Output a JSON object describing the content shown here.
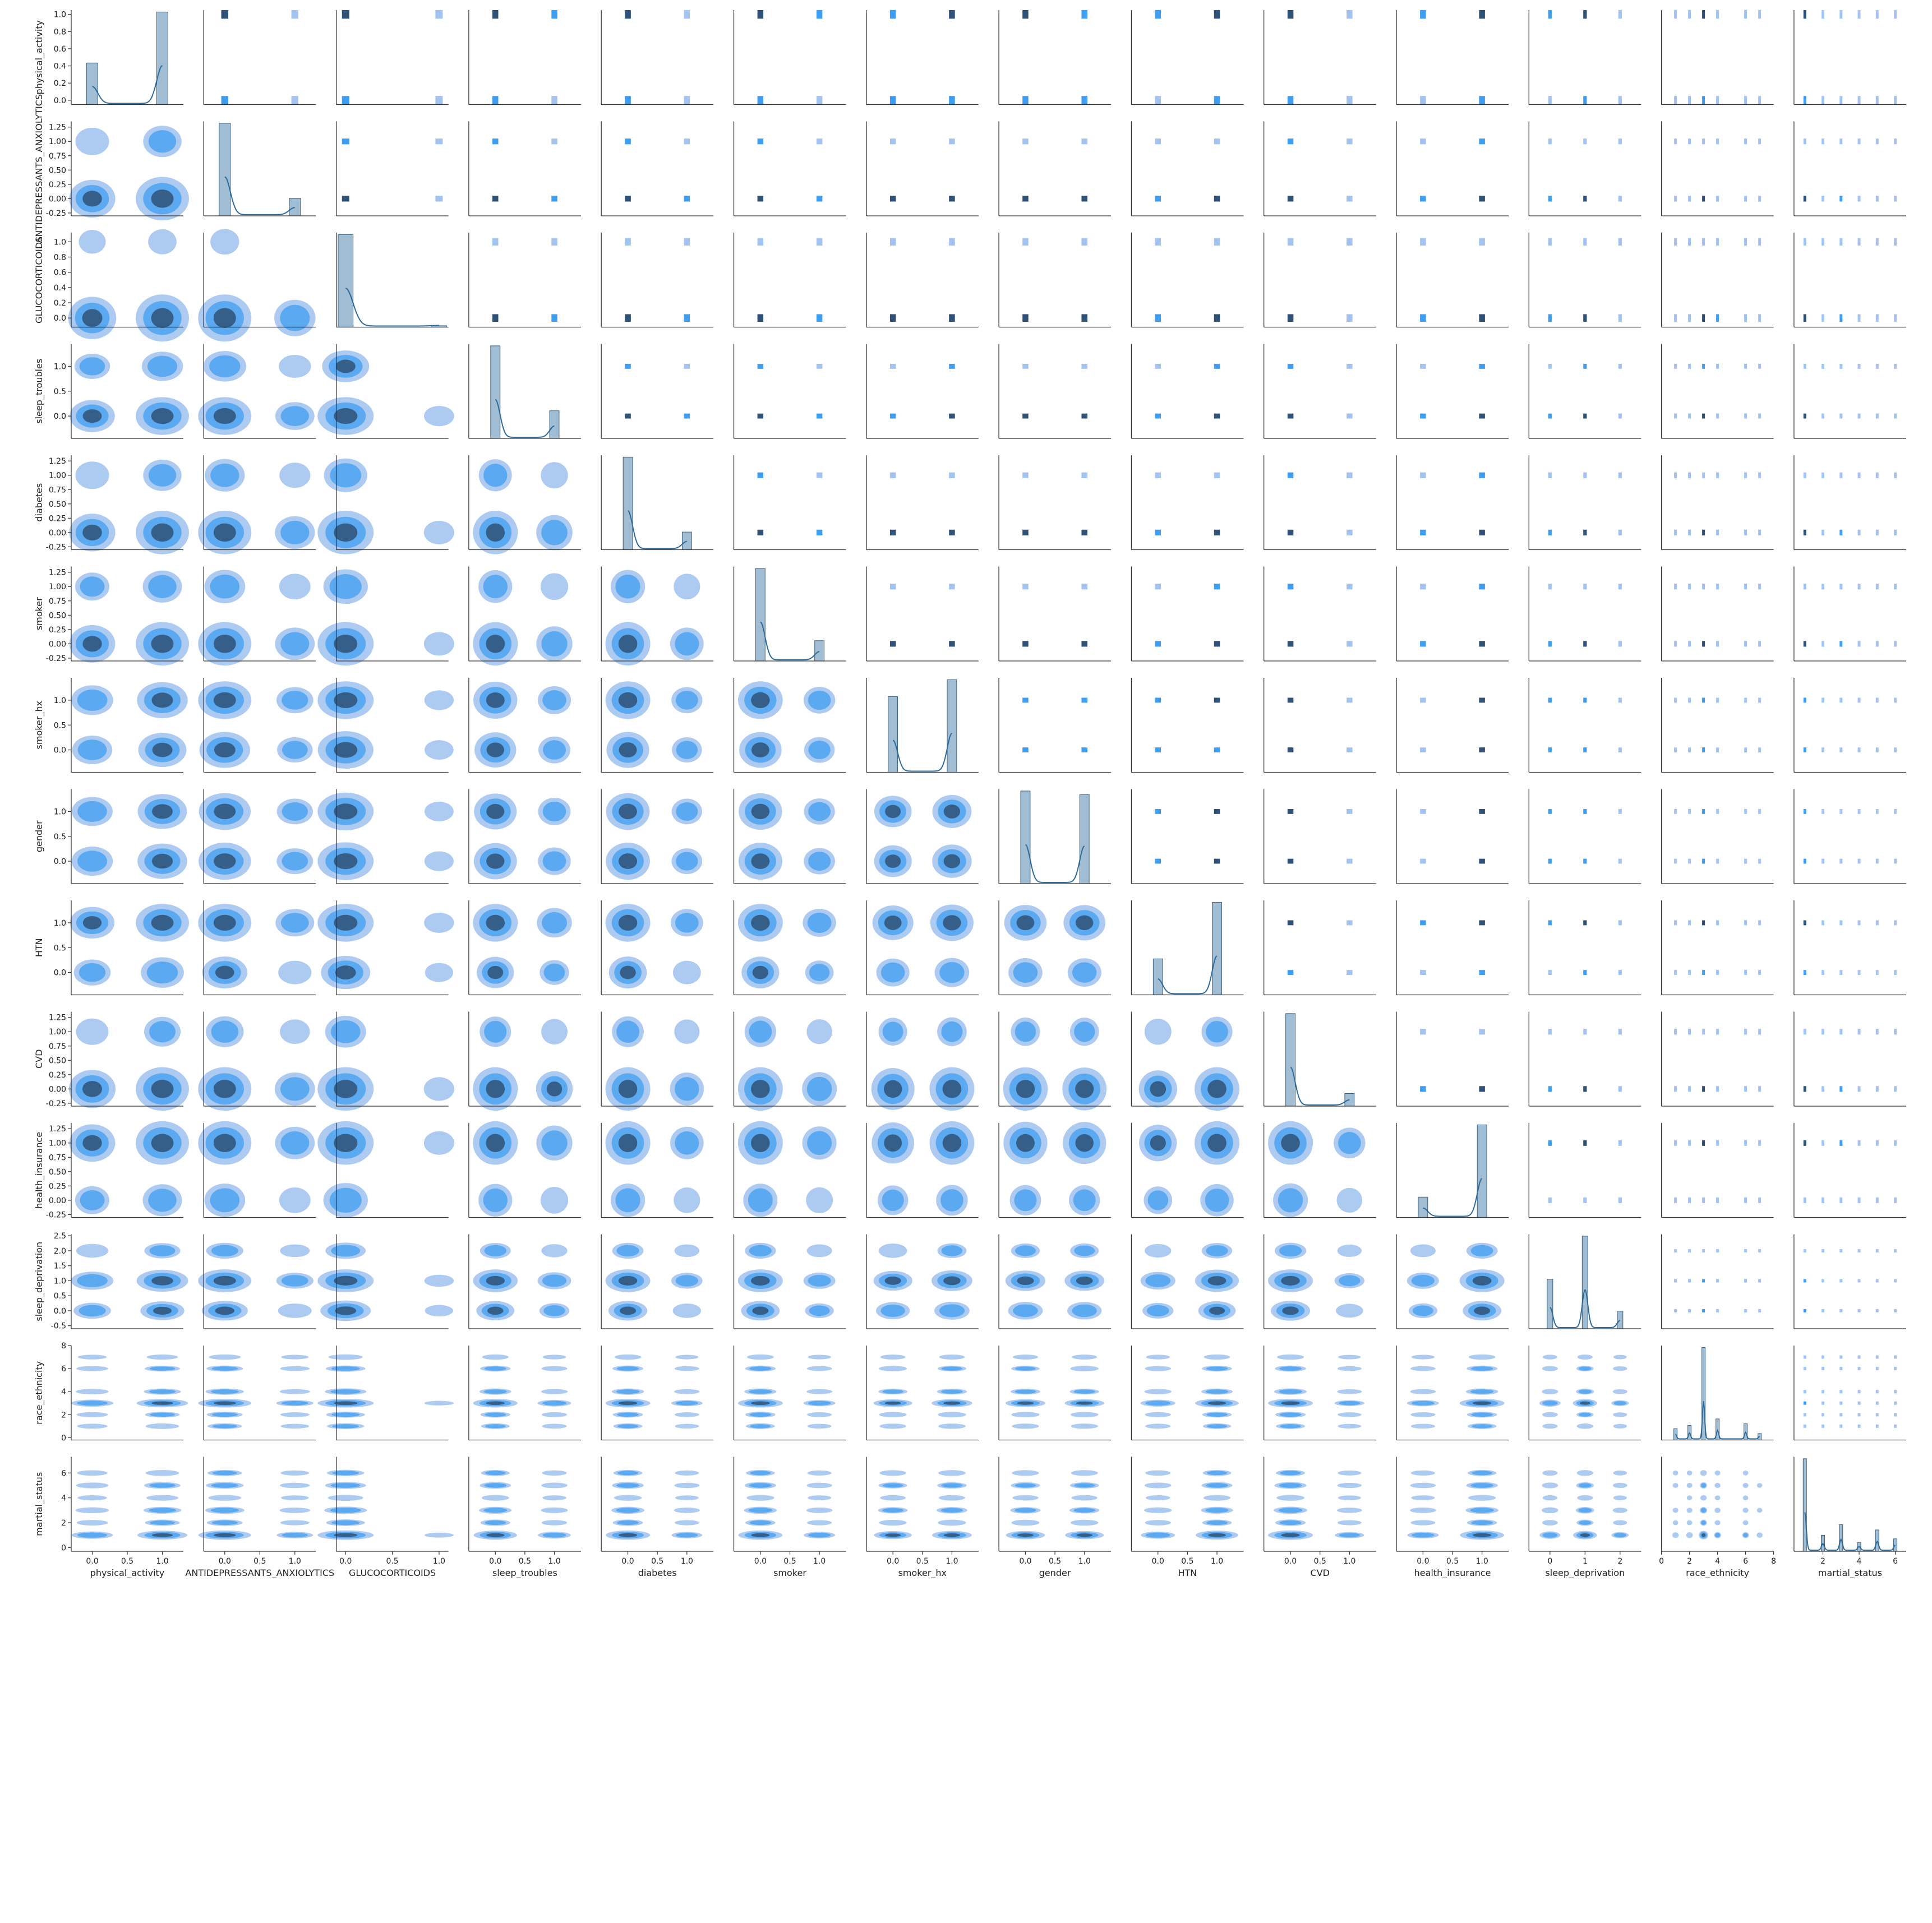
{
  "chart_data": {
    "type": "pairplot",
    "title": "",
    "variables": [
      {
        "name": "physical_activity",
        "ylim": [
          -0.05,
          1.05
        ],
        "yticks": [
          "0.0",
          "0.2",
          "0.4",
          "0.6",
          "0.8",
          "1.0"
        ],
        "xlim": [
          -0.3,
          1.3
        ],
        "xticks": [
          "0.0",
          "0.5",
          "1.0"
        ],
        "values": [
          0,
          1
        ],
        "weights": [
          0.31,
          0.69
        ]
      },
      {
        "name": "ANTIDEPRESSANTS_ANXIOLYTICS",
        "ylim": [
          -0.3,
          1.35
        ],
        "yticks": [
          "-0.25",
          "0.00",
          "0.25",
          "0.50",
          "0.75",
          "1.00",
          "1.25"
        ],
        "xlim": [
          -0.3,
          1.3
        ],
        "xticks": [
          "0.0",
          "0.5",
          "1.0"
        ],
        "values": [
          0,
          1
        ],
        "weights": [
          0.84,
          0.16
        ]
      },
      {
        "name": "GLUCOCORTICOIDS",
        "ylim": [
          -0.12,
          1.12
        ],
        "yticks": [
          "0.0",
          "0.2",
          "0.4",
          "0.6",
          "0.8",
          "1.0"
        ],
        "xlim": [
          -0.1,
          1.1
        ],
        "xticks": [
          "0.0",
          "0.5",
          "1.0"
        ],
        "values": [
          0,
          1
        ],
        "weights": [
          0.985,
          0.015
        ]
      },
      {
        "name": "sleep_troubles",
        "ylim": [
          -0.45,
          1.45
        ],
        "yticks": [
          "0.0",
          "0.5",
          "1.0"
        ],
        "xlim": [
          -0.45,
          1.45
        ],
        "xticks": [
          "0.0",
          "0.5",
          "1.0"
        ],
        "values": [
          0,
          1
        ],
        "weights": [
          0.77,
          0.23
        ]
      },
      {
        "name": "diabetes",
        "ylim": [
          -0.3,
          1.35
        ],
        "yticks": [
          "-0.25",
          "0.00",
          "0.25",
          "0.50",
          "0.75",
          "1.00",
          "1.25"
        ],
        "xlim": [
          -0.45,
          1.45
        ],
        "xticks": [
          "0.0",
          "0.5",
          "1.0"
        ],
        "values": [
          0,
          1
        ],
        "weights": [
          0.84,
          0.16
        ]
      },
      {
        "name": "smoker",
        "ylim": [
          -0.3,
          1.35
        ],
        "yticks": [
          "-0.25",
          "0.00",
          "0.25",
          "0.50",
          "0.75",
          "1.00",
          "1.25"
        ],
        "xlim": [
          -0.45,
          1.45
        ],
        "xticks": [
          "0.0",
          "0.5",
          "1.0"
        ],
        "values": [
          0,
          1
        ],
        "weights": [
          0.82,
          0.18
        ]
      },
      {
        "name": "smoker_hx",
        "ylim": [
          -0.45,
          1.45
        ],
        "yticks": [
          "0.0",
          "0.5",
          "1.0"
        ],
        "xlim": [
          -0.45,
          1.45
        ],
        "xticks": [
          "0.0",
          "0.5",
          "1.0"
        ],
        "values": [
          0,
          1
        ],
        "weights": [
          0.45,
          0.55
        ]
      },
      {
        "name": "gender",
        "ylim": [
          -0.45,
          1.45
        ],
        "yticks": [
          "0.0",
          "0.5",
          "1.0"
        ],
        "xlim": [
          -0.45,
          1.45
        ],
        "xticks": [
          "0.0",
          "0.5",
          "1.0"
        ],
        "values": [
          0,
          1
        ],
        "weights": [
          0.51,
          0.49
        ]
      },
      {
        "name": "HTN",
        "ylim": [
          -0.45,
          1.45
        ],
        "yticks": [
          "0.0",
          "0.5",
          "1.0"
        ],
        "xlim": [
          -0.45,
          1.45
        ],
        "xticks": [
          "0.0",
          "0.5",
          "1.0"
        ],
        "values": [
          0,
          1
        ],
        "weights": [
          0.28,
          0.72
        ]
      },
      {
        "name": "CVD",
        "ylim": [
          -0.3,
          1.35
        ],
        "yticks": [
          "-0.25",
          "0.00",
          "0.25",
          "0.50",
          "0.75",
          "1.00",
          "1.25"
        ],
        "xlim": [
          -0.45,
          1.45
        ],
        "xticks": [
          "0.0",
          "0.5",
          "1.0"
        ],
        "values": [
          0,
          1
        ],
        "weights": [
          0.88,
          0.12
        ]
      },
      {
        "name": "health_insurance",
        "ylim": [
          -0.3,
          1.35
        ],
        "yticks": [
          "-0.25",
          "0.00",
          "0.25",
          "0.50",
          "0.75",
          "1.00",
          "1.25"
        ],
        "xlim": [
          -0.45,
          1.45
        ],
        "xticks": [
          "0.0",
          "0.5",
          "1.0"
        ],
        "values": [
          0,
          1
        ],
        "weights": [
          0.18,
          0.82
        ]
      },
      {
        "name": "sleep_deprivation",
        "ylim": [
          -0.6,
          2.55
        ],
        "yticks": [
          "-0.5",
          "0.0",
          "0.5",
          "1.0",
          "1.5",
          "2.0",
          "2.5"
        ],
        "xlim": [
          -0.6,
          2.6
        ],
        "xticks": [
          "0",
          "1",
          "2"
        ],
        "values": [
          0,
          1,
          2
        ],
        "weights": [
          0.31,
          0.58,
          0.11
        ]
      },
      {
        "name": "race_ethnicity",
        "ylim": [
          -0.2,
          8.0
        ],
        "yticks": [
          "0",
          "2",
          "4",
          "6",
          "8"
        ],
        "xlim": [
          0,
          8
        ],
        "xticks": [
          "0",
          "2",
          "4",
          "6",
          "8"
        ],
        "values": [
          1,
          2,
          3,
          4,
          6,
          7
        ],
        "weights": [
          0.07,
          0.09,
          0.57,
          0.13,
          0.1,
          0.04
        ]
      },
      {
        "name": "martial_status",
        "ylim": [
          -0.3,
          7.3
        ],
        "yticks": [
          "0",
          "2",
          "4",
          "6"
        ],
        "xlim": [
          0.4,
          6.6
        ],
        "xticks": [
          "2",
          "4",
          "6"
        ],
        "values": [
          1,
          2,
          3,
          4,
          5,
          6
        ],
        "weights": [
          0.52,
          0.09,
          0.15,
          0.05,
          0.12,
          0.07
        ]
      }
    ],
    "upper": "histogram",
    "lower": "kde",
    "diagonal": "histogram with kde",
    "colors": {
      "kde_light": "#a4c4ef",
      "kde_mid": "#3f9ef0",
      "kde_dark": "#2f5276",
      "hist_bar": "#8fb2cc",
      "kde_line": "#2b6a99",
      "spine": "#333333"
    }
  }
}
